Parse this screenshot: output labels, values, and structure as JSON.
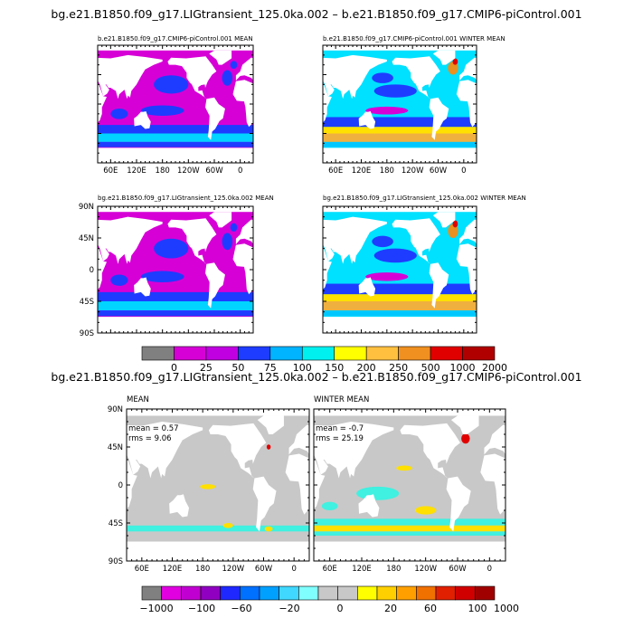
{
  "top_title": "bg.e21.B1850.f09_g17.LIGtransient_125.0ka.002 – b.e21.B1850.f09_g17.CMIP6-piControl.001",
  "panels": [
    {
      "title": "b.e21.B1850.f09_g17.CMIP6-piControl.001 MEAN"
    },
    {
      "title": "b.e21.B1850.f09_g17.CMIP6-piControl.001 WINTER MEAN"
    },
    {
      "title": "bg.e21.B1850.f09_g17.LIGtransient_125.0ka.002 MEAN"
    },
    {
      "title": "bg.e21.B1850.f09_g17.LIGtransient_125.0ka.002 WINTER MEAN"
    }
  ],
  "lat_labels": [
    "90N",
    "45N",
    "0",
    "45S",
    "90S"
  ],
  "lon_labels": [
    "60E",
    "120E",
    "180",
    "120W",
    "60W",
    "0"
  ],
  "colorbar_top": [
    "0",
    "25",
    "50",
    "75",
    "100",
    "150",
    "200",
    "250",
    "500",
    "1000",
    "2000"
  ],
  "bottom_title": "bg.e21.B1850.f09_g17.LIGtransient_125.0ka.002 – b.e21.B1850.f09_g17.CMIP6-piControl.001",
  "diff_panels": [
    {
      "title": "MEAN",
      "mean": "mean = 0.57",
      "rms": "rms = 9.06"
    },
    {
      "title": "WINTER MEAN",
      "mean": "mean = -0.7",
      "rms": "rms = 25.19"
    }
  ],
  "colorbar_bottom": [
    "−1000",
    "−100",
    "−60",
    "−20",
    "0",
    "20",
    "60",
    "100",
    "1000"
  ]
}
